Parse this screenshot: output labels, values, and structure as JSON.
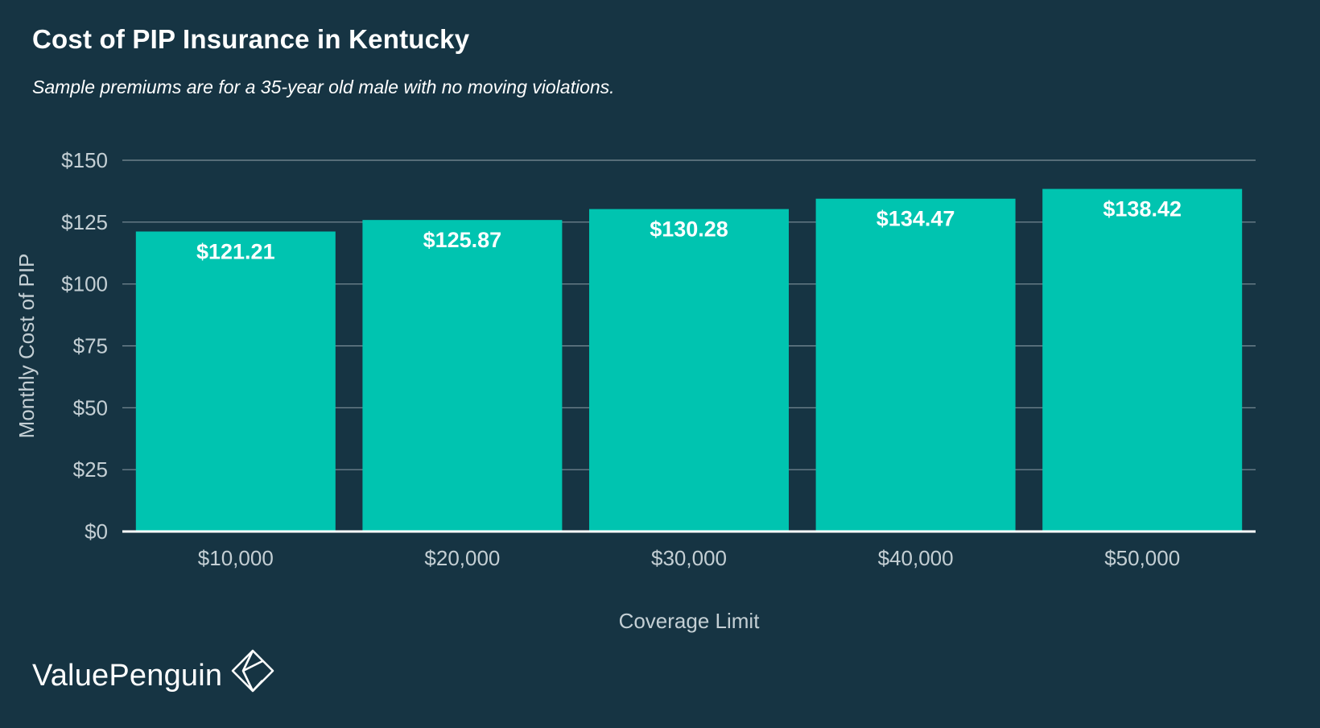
{
  "header": {
    "title": "Cost of PIP Insurance in Kentucky",
    "subtitle": "Sample premiums are for a 35-year old male with no moving violations."
  },
  "brand": {
    "name": "ValuePenguin",
    "logo_icon": "diamond-logo-icon"
  },
  "colors": {
    "background": "#163443",
    "bar": "#00c4b0",
    "grid": "#7d8f99",
    "axis_text": "#c4cfd4",
    "label": "#ffffff"
  },
  "chart_data": {
    "type": "bar",
    "categories": [
      "$10,000",
      "$20,000",
      "$30,000",
      "$40,000",
      "$50,000"
    ],
    "values": [
      121.21,
      125.87,
      130.28,
      134.47,
      138.42
    ],
    "value_labels": [
      "$121.21",
      "$125.87",
      "$130.28",
      "$134.47",
      "$138.42"
    ],
    "xlabel": "Coverage Limit",
    "ylabel": "Monthly Cost of PIP",
    "ylim": [
      0,
      150
    ],
    "yticks": [
      0,
      25,
      50,
      75,
      100,
      125,
      150
    ],
    "ytick_labels": [
      "$0",
      "$25",
      "$50",
      "$75",
      "$100",
      "$125",
      "$150"
    ],
    "grid": true,
    "legend": "none"
  }
}
